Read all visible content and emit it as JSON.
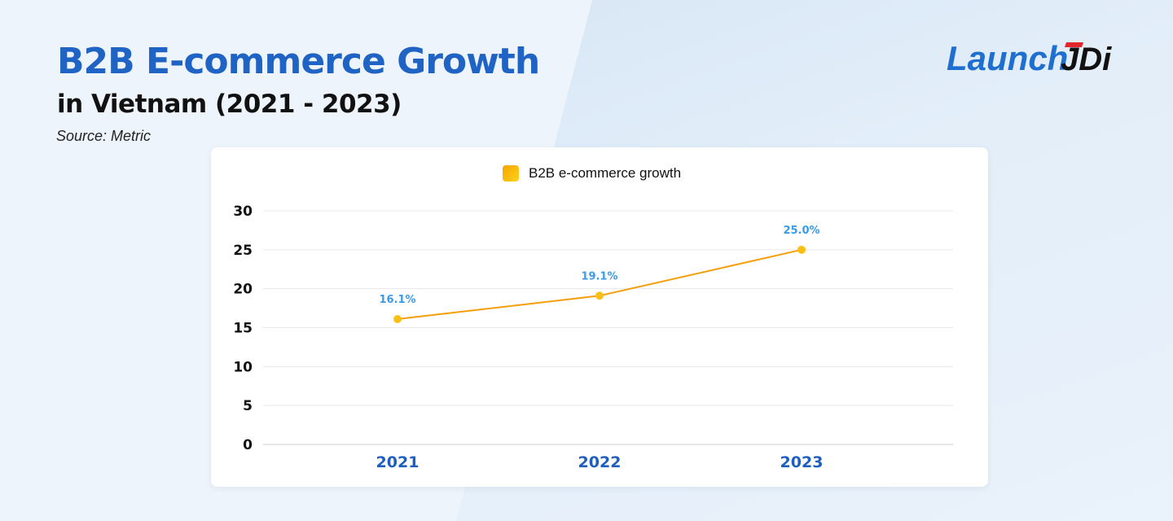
{
  "header": {
    "title": "B2B E-commerce Growth",
    "subtitle": "in Vietnam (2021 - 2023)",
    "source": "Source: Metric"
  },
  "logo": {
    "text_main": "Launch",
    "text_accent": "JDI",
    "colors": {
      "main": "#1f6fd0",
      "accent_black": "#111111",
      "accent_red": "#e2262b"
    }
  },
  "chart_data": {
    "type": "line",
    "title": "",
    "xlabel": "",
    "ylabel": "",
    "categories": [
      "2021",
      "2022",
      "2023"
    ],
    "series": [
      {
        "name": "B2B e-commerce growth",
        "values": [
          16.1,
          19.1,
          25.0
        ],
        "labels": [
          "16.1%",
          "19.1%",
          "25.0%"
        ],
        "color": "#f59e0b"
      }
    ],
    "ylim": [
      0,
      30
    ],
    "yticks": [
      "0",
      "5",
      "10",
      "15",
      "20",
      "25",
      "30"
    ],
    "grid": true,
    "legend": "top-center",
    "colors": {
      "line": "#f59e0b",
      "point": "#fbbf16",
      "data_label": "#3b9bea",
      "x_tick": "#1f5fbf",
      "y_tick": "#111"
    }
  }
}
